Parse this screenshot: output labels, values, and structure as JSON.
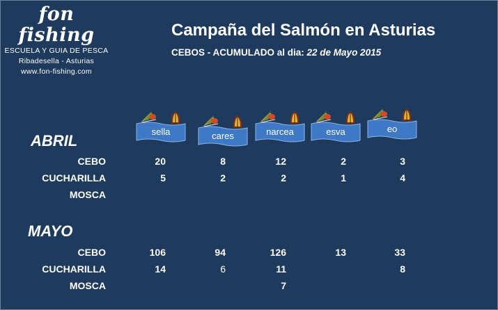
{
  "logo": {
    "brand": "fon fishing",
    "line1": "ESCUELA Y GUIA DE PESCA",
    "line2": "Ribadesella - Asturias",
    "line3": "www.fon-fishing.com"
  },
  "title": "Campaña del Salmón en Asturias",
  "subtitle": {
    "prefix": "CEBOS  - ACUMULADO al dia:",
    "date": "22 de Mayo 2015"
  },
  "colors": {
    "background": "#1e3a5c",
    "banner": "#3f78c4",
    "text": "#ffffff"
  },
  "rivers": [
    "sella",
    "cares",
    "narcea",
    "esva",
    "eo"
  ],
  "months": [
    {
      "name": "ABRIL",
      "rows": [
        {
          "label": "CEBO",
          "values": [
            "20",
            "8",
            "12",
            "2",
            "3"
          ]
        },
        {
          "label": "CUCHARILLA",
          "values": [
            "5",
            "2",
            "2",
            "1",
            "4"
          ]
        },
        {
          "label": "MOSCA",
          "values": [
            "",
            "",
            "",
            "",
            ""
          ]
        }
      ]
    },
    {
      "name": "MAYO",
      "rows": [
        {
          "label": "CEBO",
          "values": [
            "106",
            "94",
            "126",
            "13",
            "33"
          ]
        },
        {
          "label": "CUCHARILLA",
          "values": [
            "14",
            "6",
            "11",
            "",
            "8"
          ]
        },
        {
          "label": "MOSCA",
          "values": [
            "",
            "",
            "7",
            "",
            ""
          ]
        }
      ]
    }
  ]
}
